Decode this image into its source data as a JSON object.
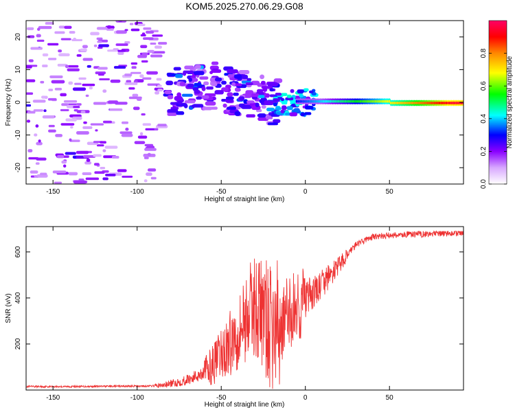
{
  "title": "KOM5.2025.270.06.29.G08",
  "chart_data": [
    {
      "type": "heatmap",
      "title": "KOM5.2025.270.06.29.G08",
      "xlabel": "Height of straight line (km)",
      "ylabel": "Frequency (Hz)",
      "xlim": [
        -166,
        94
      ],
      "ylim": [
        -25,
        25
      ],
      "xticks": [
        -150,
        -100,
        -50,
        0,
        50
      ],
      "yticks": [
        -20,
        -10,
        0,
        10,
        20
      ],
      "colorbar": {
        "label": "Normalized spectral amplitude",
        "range": [
          0,
          1
        ],
        "ticks": [
          0.0,
          0.2,
          0.4,
          0.6,
          0.8
        ],
        "colormap": [
          "#ffffff",
          "#cc88ff",
          "#7700ff",
          "#0000ff",
          "#00ffff",
          "#00ff00",
          "#ffff00",
          "#ff8800",
          "#ff0000",
          "#ff0066"
        ]
      },
      "description": "Main spectral ridge near 0 Hz strengthening from about -20 km to 94 km; scattered weak blobs from -166 km to -85 km; dispersed patches between -80 km and -15 km at 0 to 10 Hz"
    },
    {
      "type": "line",
      "xlabel": "Height of straight line (km)",
      "ylabel": "SNR (v/v)",
      "xlim": [
        -166,
        94
      ],
      "ylim": [
        0,
        710
      ],
      "xticks": [
        -150,
        -100,
        -50,
        0,
        50
      ],
      "yticks": [
        200,
        400,
        600
      ],
      "series": [
        {
          "name": "SNR",
          "color": "#ee3333",
          "x": [
            -166,
            -140,
            -120,
            -100,
            -90,
            -85,
            -80,
            -75,
            -70,
            -65,
            -60,
            -55,
            -50,
            -45,
            -40,
            -35,
            -30,
            -25,
            -20,
            -15,
            -10,
            -5,
            0,
            5,
            10,
            15,
            20,
            25,
            30,
            35,
            40,
            50,
            60,
            70,
            80,
            94
          ],
          "values": [
            15,
            15,
            16,
            17,
            18,
            20,
            28,
            35,
            45,
            60,
            80,
            110,
            150,
            200,
            260,
            320,
            370,
            330,
            250,
            280,
            330,
            360,
            390,
            420,
            460,
            500,
            540,
            590,
            630,
            650,
            665,
            672,
            675,
            678,
            680,
            683
          ]
        }
      ]
    }
  ]
}
